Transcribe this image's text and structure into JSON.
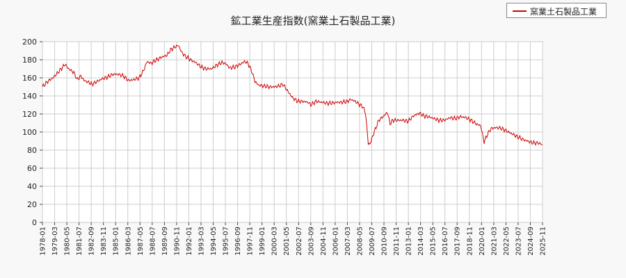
{
  "chart_data": {
    "type": "line",
    "title": "鉱工業生産指数(窯業土石製品工業)",
    "xlabel": "",
    "ylabel": "",
    "ylim": [
      0,
      200
    ],
    "yticks": [
      0,
      20,
      40,
      60,
      80,
      100,
      120,
      140,
      160,
      180,
      200
    ],
    "xlim": [
      "1978-01",
      "2025-11"
    ],
    "xticks": [
      "1978-01",
      "1979-03",
      "1980-05",
      "1981-07",
      "1982-09",
      "1983-11",
      "1985-01",
      "1986-03",
      "1987-05",
      "1988-07",
      "1989-09",
      "1990-11",
      "1992-01",
      "1993-03",
      "1994-05",
      "1995-07",
      "1996-09",
      "1997-11",
      "1999-01",
      "2000-03",
      "2001-05",
      "2002-07",
      "2003-09",
      "2004-11",
      "2006-01",
      "2007-03",
      "2008-05",
      "2009-07",
      "2010-09",
      "2011-11",
      "2013-01",
      "2014-03",
      "2015-05",
      "2016-07",
      "2017-09",
      "2018-11",
      "2020-01",
      "2021-03",
      "2022-05",
      "2023-07",
      "2024-09",
      "2025-11"
    ],
    "grid": true,
    "legend": "top-right",
    "series": [
      {
        "name": "窯業土石製品工業",
        "color": "#cc0000",
        "points": [
          [
            "1978-01",
            150
          ],
          [
            "1978-07",
            156
          ],
          [
            "1979-01",
            160
          ],
          [
            "1979-07",
            166
          ],
          [
            "1980-03",
            175
          ],
          [
            "1980-07",
            170
          ],
          [
            "1981-01",
            166
          ],
          [
            "1981-05",
            158
          ],
          [
            "1981-09",
            162
          ],
          [
            "1982-01",
            157
          ],
          [
            "1982-06",
            155
          ],
          [
            "1982-10",
            153
          ],
          [
            "1983-04",
            156
          ],
          [
            "1983-10",
            159
          ],
          [
            "1984-04",
            161
          ],
          [
            "1984-10",
            164
          ],
          [
            "1985-04",
            164
          ],
          [
            "1985-10",
            162
          ],
          [
            "1986-04",
            157
          ],
          [
            "1986-10",
            158
          ],
          [
            "1987-04",
            160
          ],
          [
            "1987-09",
            168
          ],
          [
            "1988-01",
            178
          ],
          [
            "1988-06",
            176
          ],
          [
            "1988-12",
            180
          ],
          [
            "1989-06",
            183
          ],
          [
            "1989-12",
            185
          ],
          [
            "1990-04",
            191
          ],
          [
            "1990-09",
            194
          ],
          [
            "1991-01",
            196
          ],
          [
            "1991-05",
            188
          ],
          [
            "1991-09",
            184
          ],
          [
            "1992-03",
            180
          ],
          [
            "1992-09",
            177
          ],
          [
            "1993-03",
            172
          ],
          [
            "1993-09",
            170
          ],
          [
            "1994-03",
            170
          ],
          [
            "1994-09",
            174
          ],
          [
            "1995-03",
            177
          ],
          [
            "1995-07",
            176
          ],
          [
            "1995-12",
            171
          ],
          [
            "1996-06",
            172
          ],
          [
            "1996-12",
            175
          ],
          [
            "1997-05",
            178
          ],
          [
            "1997-09",
            176
          ],
          [
            "1998-01",
            168
          ],
          [
            "1998-05",
            156
          ],
          [
            "1998-09",
            152
          ],
          [
            "1999-03",
            151
          ],
          [
            "1999-09",
            150
          ],
          [
            "2000-03",
            150
          ],
          [
            "2000-09",
            151
          ],
          [
            "2001-01",
            153
          ],
          [
            "2001-06",
            146
          ],
          [
            "2001-12",
            138
          ],
          [
            "2002-06",
            134
          ],
          [
            "2002-12",
            134
          ],
          [
            "2003-06",
            133
          ],
          [
            "2003-09",
            130
          ],
          [
            "2004-03",
            134
          ],
          [
            "2004-09",
            133
          ],
          [
            "2005-03",
            132
          ],
          [
            "2005-09",
            132
          ],
          [
            "2006-03",
            133
          ],
          [
            "2006-09",
            133
          ],
          [
            "2007-03",
            134
          ],
          [
            "2007-07",
            136
          ],
          [
            "2007-12",
            134
          ],
          [
            "2008-04",
            131
          ],
          [
            "2008-09",
            128
          ],
          [
            "2008-12",
            120
          ],
          [
            "2009-03",
            87
          ],
          [
            "2009-05",
            87
          ],
          [
            "2009-09",
            98
          ],
          [
            "2010-03",
            113
          ],
          [
            "2010-09",
            118
          ],
          [
            "2011-01",
            122
          ],
          [
            "2011-04",
            109
          ],
          [
            "2011-07",
            113
          ],
          [
            "2012-01",
            113
          ],
          [
            "2012-07",
            113
          ],
          [
            "2013-01",
            112
          ],
          [
            "2013-07",
            118
          ],
          [
            "2014-02",
            121
          ],
          [
            "2014-06",
            118
          ],
          [
            "2014-12",
            117
          ],
          [
            "2015-06",
            115
          ],
          [
            "2015-12",
            113
          ],
          [
            "2016-06",
            113
          ],
          [
            "2017-01",
            116
          ],
          [
            "2017-07",
            115
          ],
          [
            "2018-01",
            117
          ],
          [
            "2018-07",
            116
          ],
          [
            "2019-01",
            113
          ],
          [
            "2019-07",
            109
          ],
          [
            "2019-12",
            107
          ],
          [
            "2020-04",
            89
          ],
          [
            "2020-08",
            98
          ],
          [
            "2020-12",
            104
          ],
          [
            "2021-06",
            105
          ],
          [
            "2021-12",
            104
          ],
          [
            "2022-06",
            101
          ],
          [
            "2022-12",
            98
          ],
          [
            "2023-06",
            95
          ],
          [
            "2023-12",
            92
          ],
          [
            "2024-06",
            90
          ],
          [
            "2024-12",
            88
          ],
          [
            "2025-06",
            88
          ],
          [
            "2025-11",
            86
          ]
        ]
      }
    ]
  }
}
